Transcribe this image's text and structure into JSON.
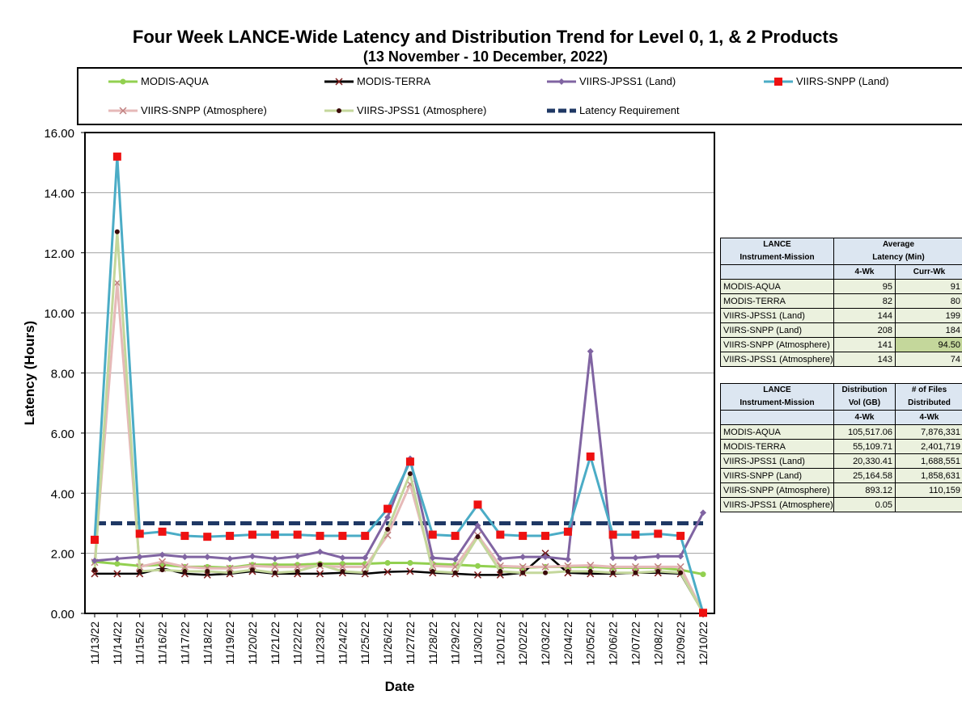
{
  "chart_data": {
    "type": "line",
    "title": "Four Week LANCE-Wide Latency and Distribution Trend for Level 0, 1, & 2 Products",
    "subtitle": "(13  November   -  10  December,  2022)",
    "xlabel": "Date",
    "ylabel": "Latency (Hours)",
    "ylim": [
      0,
      16
    ],
    "yticks": [
      "0.00",
      "2.00",
      "4.00",
      "6.00",
      "8.00",
      "10.00",
      "12.00",
      "14.00",
      "16.00"
    ],
    "grid": true,
    "legend_position": "top",
    "categories": [
      "11/13/22",
      "11/14/22",
      "11/15/22",
      "11/16/22",
      "11/17/22",
      "11/18/22",
      "11/19/22",
      "11/20/22",
      "11/21/22",
      "11/22/22",
      "11/23/22",
      "11/24/22",
      "11/25/22",
      "11/26/22",
      "11/27/22",
      "11/28/22",
      "11/29/22",
      "11/30/22",
      "12/01/22",
      "12/02/22",
      "12/03/22",
      "12/04/22",
      "12/05/22",
      "12/06/22",
      "12/07/22",
      "12/08/22",
      "12/09/22",
      "12/10/22"
    ],
    "series": [
      {
        "name": "MODIS-AQUA",
        "color": "#92d050",
        "marker": "circle",
        "values": [
          1.72,
          1.65,
          1.58,
          1.62,
          1.55,
          1.55,
          1.52,
          1.62,
          1.62,
          1.62,
          1.65,
          1.65,
          1.65,
          1.68,
          1.68,
          1.65,
          1.62,
          1.58,
          1.55,
          1.52,
          1.55,
          1.55,
          1.55,
          1.52,
          1.52,
          1.52,
          1.45,
          1.3
        ]
      },
      {
        "name": "MODIS-TERRA",
        "color": "#000000",
        "marker": "x",
        "values": [
          1.32,
          1.32,
          1.32,
          1.5,
          1.32,
          1.28,
          1.32,
          1.4,
          1.32,
          1.32,
          1.32,
          1.35,
          1.32,
          1.38,
          1.4,
          1.35,
          1.32,
          1.28,
          1.28,
          1.35,
          2.0,
          1.35,
          1.32,
          1.32,
          1.35,
          1.35,
          1.32,
          0.02
        ]
      },
      {
        "name": "VIIRS-JPSS1 (Land)",
        "color": "#8064a2",
        "marker": "diamond",
        "values": [
          1.75,
          1.82,
          1.88,
          1.95,
          1.88,
          1.88,
          1.82,
          1.9,
          1.82,
          1.9,
          2.05,
          1.85,
          1.85,
          3.2,
          5.15,
          1.85,
          1.8,
          2.92,
          1.82,
          1.88,
          1.88,
          1.8,
          8.72,
          1.85,
          1.85,
          1.9,
          1.9,
          3.35
        ]
      },
      {
        "name": "VIIRS-SNPP (Land)",
        "color": "#4bacc6",
        "marker": "square",
        "values": [
          2.45,
          15.2,
          2.65,
          2.72,
          2.58,
          2.55,
          2.58,
          2.62,
          2.62,
          2.62,
          2.58,
          2.58,
          2.58,
          3.48,
          5.05,
          2.62,
          2.58,
          3.62,
          2.62,
          2.58,
          2.58,
          2.72,
          5.22,
          2.62,
          2.62,
          2.65,
          2.58,
          0.02
        ]
      },
      {
        "name": "VIIRS-SNPP (Atmosphere)",
        "color": "#e6b9b8",
        "marker": "x",
        "values": [
          1.7,
          11.0,
          1.55,
          1.72,
          1.55,
          1.5,
          1.5,
          1.58,
          1.55,
          1.55,
          1.58,
          1.55,
          1.55,
          2.6,
          4.3,
          1.58,
          1.55,
          2.6,
          1.58,
          1.55,
          1.55,
          1.58,
          1.6,
          1.55,
          1.55,
          1.55,
          1.55,
          0.02
        ]
      },
      {
        "name": "VIIRS-JPSS1 (Atmosphere)",
        "color": "#c4d79b",
        "marker": "dot",
        "values": [
          1.45,
          12.7,
          1.4,
          1.45,
          1.4,
          1.4,
          1.35,
          1.45,
          1.35,
          1.4,
          1.62,
          1.4,
          1.35,
          2.8,
          4.65,
          1.4,
          1.35,
          2.55,
          1.4,
          1.35,
          1.35,
          1.4,
          1.4,
          1.35,
          1.35,
          1.4,
          1.35,
          0.02
        ]
      },
      {
        "name": "Latency Requirement",
        "color": "#1f3864",
        "marker": "none",
        "dashed": true,
        "values": [
          3,
          3,
          3,
          3,
          3,
          3,
          3,
          3,
          3,
          3,
          3,
          3,
          3,
          3,
          3,
          3,
          3,
          3,
          3,
          3,
          3,
          3,
          3,
          3,
          3,
          3,
          3,
          3
        ]
      }
    ]
  },
  "latency_table": {
    "header_col1": [
      "LANCE",
      "Instrument-Mission"
    ],
    "header_col2": [
      "Average",
      "Latency (Min)"
    ],
    "sub_4wk": "4-Wk",
    "sub_curr": "Curr-Wk",
    "rows": [
      {
        "name": "MODIS-AQUA",
        "wk4": "95",
        "curr": "91"
      },
      {
        "name": "MODIS-TERRA",
        "wk4": "82",
        "curr": "80"
      },
      {
        "name": "VIIRS-JPSS1 (Land)",
        "wk4": "144",
        "curr": "199"
      },
      {
        "name": "VIIRS-SNPP (Land)",
        "wk4": "208",
        "curr": "184"
      },
      {
        "name": "VIIRS-SNPP (Atmosphere)",
        "wk4": "141",
        "curr": "94.50"
      },
      {
        "name": "VIIRS-JPSS1 (Atmosphere)",
        "wk4": "143",
        "curr": "74"
      }
    ]
  },
  "distribution_table": {
    "header_col1": [
      "LANCE",
      "Instrument-Mission"
    ],
    "header_col2": [
      "Distribution",
      "Vol (GB)"
    ],
    "header_col3": [
      "# of Files",
      "Distributed"
    ],
    "sub_a": "4-Wk",
    "sub_b": "4-Wk",
    "rows": [
      {
        "name": "MODIS-AQUA",
        "vol": "105,517.06",
        "files": "7,876,331"
      },
      {
        "name": "MODIS-TERRA",
        "vol": "55,109.71",
        "files": "2,401,719"
      },
      {
        "name": "VIIRS-JPSS1 (Land)",
        "vol": "20,330.41",
        "files": "1,688,551"
      },
      {
        "name": "VIIRS-SNPP (Land)",
        "vol": "25,164.58",
        "files": "1,858,631"
      },
      {
        "name": "VIIRS-SNPP (Atmosphere)",
        "vol": "893.12",
        "files": "110,159"
      },
      {
        "name": "VIIRS-JPSS1 (Atmosphere)",
        "vol": "0.05",
        "files": ""
      }
    ]
  }
}
